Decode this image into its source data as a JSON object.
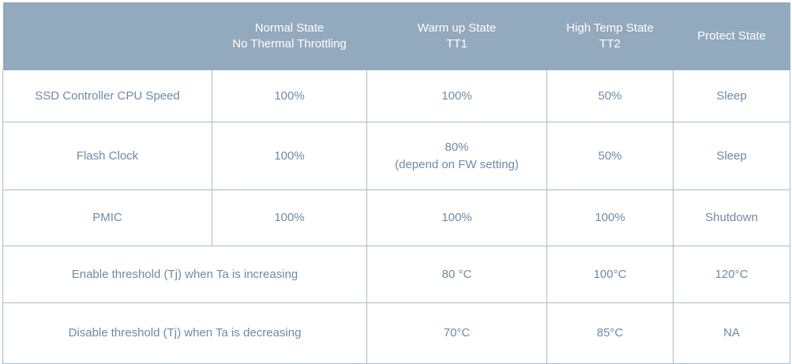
{
  "header": {
    "corner": "",
    "normal": {
      "line1": "Normal State",
      "line2": "No Thermal Throttling"
    },
    "warm": {
      "line1": "Warm up State",
      "line2": "TT1"
    },
    "high": {
      "line1": "High Temp State",
      "line2": "TT2"
    },
    "protect": {
      "line1": "Protect State"
    }
  },
  "rows": [
    {
      "label": "SSD Controller CPU Speed",
      "normal": "100%",
      "warm": "100%",
      "high": "50%",
      "protect": "Sleep"
    },
    {
      "label": "Flash Clock",
      "normal": "100%",
      "warm_line1": "80%",
      "warm_line2": "(depend on FW setting)",
      "high": "50%",
      "protect": "Sleep"
    },
    {
      "label": "PMIC",
      "normal": "100%",
      "warm": "100%",
      "high": "100%",
      "protect": "Shutdown"
    },
    {
      "label": "Enable threshold (Tj)  when Ta is increasing",
      "warm": "80 °C",
      "high": "100°C",
      "protect": "120°C"
    },
    {
      "label": "Disable threshold (Tj) when Ta is decreasing",
      "warm": "70°C",
      "high": "85°C",
      "protect": "NA"
    }
  ]
}
